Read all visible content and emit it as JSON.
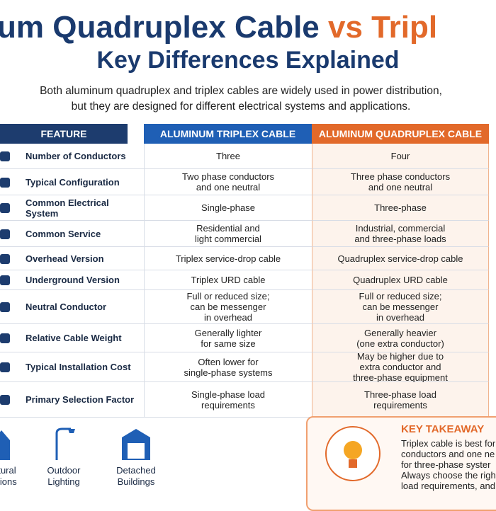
{
  "header": {
    "title": "um Quadruplex Cable",
    "title_accent": "vs Tripl",
    "subtitle": "Key Differences Explained",
    "intro": "Both aluminum quadruplex and triplex cables are widely used in power distribution,\nbut they are designed for different electrical systems and applications."
  },
  "table": {
    "columns": [
      "FEATURE",
      "ALUMINUM TRIPLEX CABLE",
      "ALUMINUM QUADRUPLEX CABLE"
    ],
    "rows": [
      [
        "Number of Conductors",
        "Three",
        "Four"
      ],
      [
        "Typical Configuration",
        "Two phase conductors\nand one neutral",
        "Three phase conductors\nand one neutral"
      ],
      [
        "Common Electrical System",
        "Single-phase",
        "Three-phase"
      ],
      [
        "Common Service",
        "Residential and\nlight commercial",
        "Industrial, commercial\nand three-phase loads"
      ],
      [
        "Overhead Version",
        "Triplex service-drop cable",
        "Quadruplex service-drop cable"
      ],
      [
        "Underground Version",
        "Triplex URD cable",
        "Quadruplex URD cable"
      ],
      [
        "Neutral Conductor",
        "Full or reduced size;\ncan be messenger\nin overhead",
        "Full or reduced size;\ncan be messenger\nin overhead"
      ],
      [
        "Relative Cable Weight",
        "Generally lighter\nfor same size",
        "Generally heavier\n(one extra conductor)"
      ],
      [
        "Typical Installation Cost",
        "Often lower for\nsingle-phase systems",
        "May be higher due to\nextra conductor and\nthree-phase equipment"
      ],
      [
        "Primary Selection Factor",
        "Single-phase load\nrequirements",
        "Three-phase load\nrequirements"
      ]
    ]
  },
  "applications": [
    "tural\ntions",
    "Outdoor\nLighting",
    "Detached\nBuildings"
  ],
  "takeaway": {
    "title": "KEY TAKEAWAY",
    "lines": [
      "Triplex cable is best for",
      "conductors and one ne",
      "for three-phase syster",
      "Always choose the righ",
      "load requirements, and"
    ]
  }
}
